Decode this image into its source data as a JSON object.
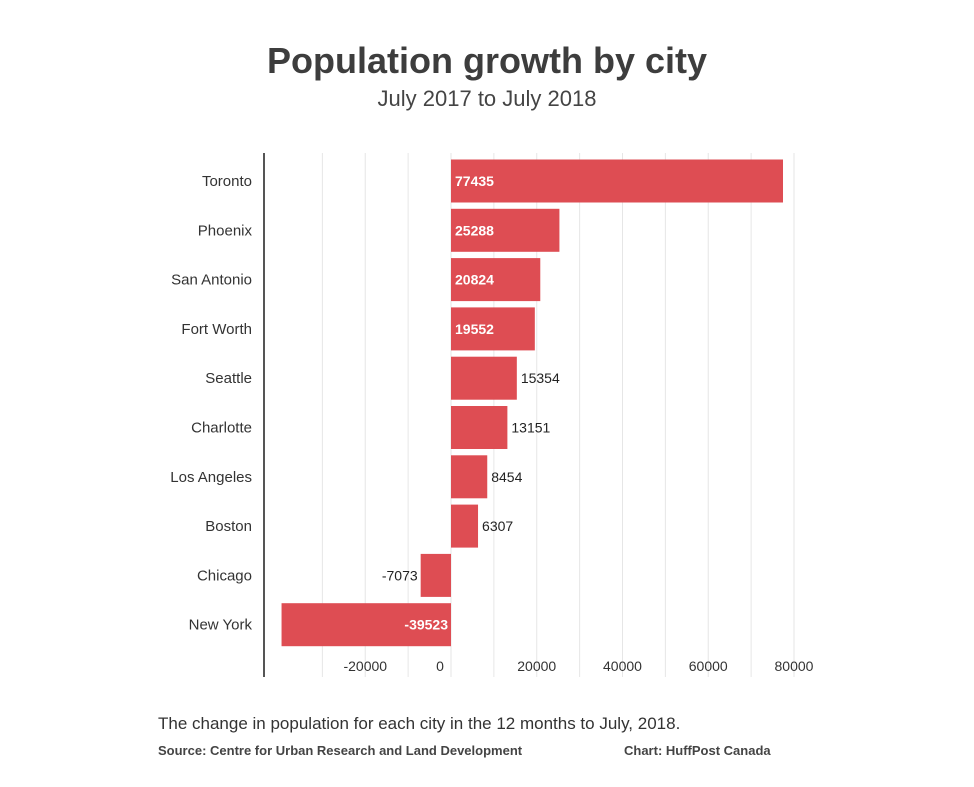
{
  "chart_data": {
    "type": "bar",
    "orientation": "horizontal",
    "title": "Population growth by city",
    "subtitle": "July 2017 to July 2018",
    "categories": [
      "Toronto",
      "Phoenix",
      "San Antonio",
      "Fort Worth",
      "Seattle",
      "Charlotte",
      "Los Angeles",
      "Boston",
      "Chicago",
      "New York"
    ],
    "values": [
      77435,
      25288,
      20824,
      19552,
      15354,
      13151,
      8454,
      6307,
      -7073,
      -39523
    ],
    "xlim": [
      -40000,
      80000
    ],
    "x_ticks": [
      -20000,
      0,
      20000,
      40000,
      60000,
      80000
    ],
    "grid": true,
    "bar_color": "#de4d53",
    "caption": "The change in population for each city in the 12 months to July, 2018.",
    "source": "Source: Centre for Urban Research and Land Development",
    "credit": "Chart: HuffPost Canada"
  }
}
